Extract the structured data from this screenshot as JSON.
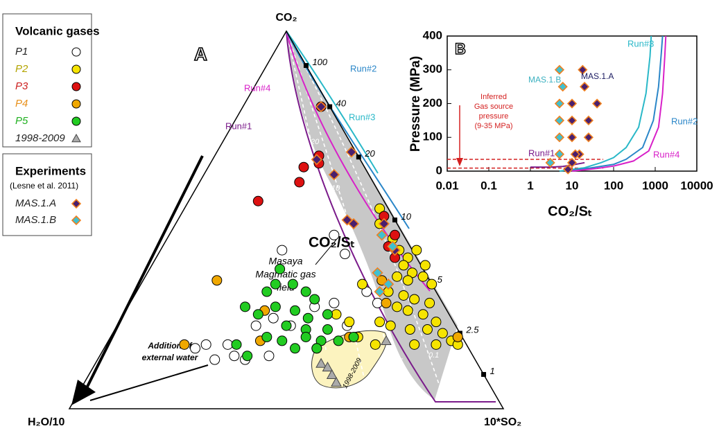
{
  "chart_data": [
    {
      "type": "ternary",
      "title": "A",
      "vertex_labels": {
        "top": "CO₂",
        "left": "H₂O/10",
        "right": "10*SO₂"
      },
      "ratio_label": "CO₂/Sₜ",
      "ratio_ticks": [
        100,
        40,
        20,
        10,
        5,
        2.5,
        1
      ],
      "legend_titles": {
        "gases": "Volcanic gases",
        "experiments": "Experiments",
        "experiments_note": "(Lesne et al. 2011)"
      },
      "series": [
        {
          "name": "P1",
          "legend_group": "gases",
          "marker": "circle",
          "color": "#ffffff",
          "label_color": "#222222",
          "co2": [
            42,
            17,
            16,
            17,
            14,
            13,
            13,
            14,
            22,
            24,
            27,
            28,
            31,
            28,
            46,
            41,
            22,
            22
          ],
          "so2": [
            28,
            23,
            21,
            28,
            31,
            27,
            34,
            39,
            40,
            35,
            43,
            47,
            53,
            57,
            38,
            43,
            53,
            32
          ]
        },
        {
          "name": "P2",
          "legend_group": "gases",
          "marker": "circle",
          "color": "#f6e400",
          "label_color": "#b3a400",
          "co2": [
            49,
            45,
            42,
            40,
            42,
            38,
            36,
            38,
            35,
            34,
            35,
            33,
            31,
            30,
            29,
            28,
            27,
            26,
            25,
            23,
            23,
            22,
            21,
            21,
            20,
            17,
            17,
            18,
            19,
            17,
            23,
            33,
            17,
            25,
            53,
            16
          ],
          "so2": [
            47,
            52,
            55,
            58,
            59,
            58,
            61,
            63,
            58,
            61,
            64,
            67,
            58,
            62,
            65,
            69,
            62,
            65,
            69,
            73,
            60,
            63,
            68,
            72,
            76,
            71,
            76,
            79,
            57,
            62,
            53,
            51,
            81,
            49,
            45,
            49
          ]
        },
        {
          "name": "P3",
          "legend_group": "gases",
          "marker": "circle",
          "color": "#dd1111",
          "label_color": "#cc2020",
          "co2": [
            80,
            67,
            65,
            64,
            60,
            55,
            51,
            46,
            43,
            40
          ],
          "so2": [
            18,
            24,
            25,
            22,
            23,
            16,
            47,
            52,
            52,
            55
          ]
        },
        {
          "name": "P4",
          "legend_group": "gases",
          "marker": "circle",
          "color": "#f0a800",
          "label_color": "#e8901a",
          "co2": [
            34,
            26,
            17,
            18,
            34,
            28,
            19,
            19
          ],
          "so2": [
            17,
            32,
            18,
            35,
            55,
            59,
            80,
            55
          ]
        },
        {
          "name": "P5",
          "legend_group": "gases",
          "marker": "circle",
          "color": "#22cc22",
          "label_color": "#20b020",
          "co2": [
            37,
            33,
            31,
            33,
            31,
            29,
            27,
            25,
            27,
            26,
            24,
            25,
            22,
            21,
            21,
            19,
            18,
            19,
            18,
            18,
            19,
            14,
            17,
            16,
            16
          ],
          "so2": [
            30,
            31,
            30,
            35,
            39,
            42,
            27,
            31,
            34,
            39,
            43,
            47,
            39,
            44,
            49,
            36,
            40,
            45,
            49,
            53,
            56,
            34,
            30,
            44,
            49
          ]
        },
        {
          "name": "1998-2009",
          "legend_group": "gases",
          "marker": "triangle",
          "color": "#aaaaaa",
          "label_color": "#222222",
          "co2": [
            12,
            11,
            9,
            7,
            18
          ],
          "so2": [
            52,
            54,
            56,
            58,
            64
          ]
        },
        {
          "name": "MAS.1.A",
          "legend_group": "experiments",
          "marker": "diamond",
          "color": "#4a1f6e",
          "stroke": "#f08020",
          "label_color": "#222222",
          "co2": [
            80,
            68,
            62,
            66,
            50,
            49,
            49,
            42
          ],
          "so2": [
            18,
            31,
            30,
            24,
            39,
            41,
            48,
            54
          ]
        },
        {
          "name": "MAS.1.B",
          "legend_group": "experiments",
          "marker": "diamond",
          "color": "#40c0d0",
          "stroke": "#f08020",
          "label_color": "#222222",
          "co2": [
            46,
            43,
            36,
            33,
            31
          ],
          "so2": [
            49,
            53,
            53,
            57,
            56
          ]
        }
      ],
      "annotations": {
        "run1": "Run#1",
        "run2": "Run#2",
        "run3": "Run#3",
        "run4": "Run#4",
        "gas_field": [
          "Masaya",
          "Magmatic gas",
          "field"
        ],
        "water": [
          "Addition of",
          "external water"
        ],
        "field_1998": "1998-2009",
        "iso": [
          20,
          10,
          5,
          0.1
        ]
      }
    },
    {
      "type": "scatter",
      "title": "B",
      "x_label": "CO₂/Sₜ",
      "y_label": "Pressure (MPa)",
      "log_x": true,
      "xlim": [
        0.01,
        10000
      ],
      "xticks": [
        0.01,
        0.1,
        1,
        10,
        100,
        1000,
        10000
      ],
      "ylim": [
        0,
        400
      ],
      "yticks": [
        0,
        100,
        200,
        300,
        400
      ],
      "hlines": [
        35,
        9
      ],
      "hline_color": "#d42020",
      "series": [
        {
          "name": "MAS.1.A",
          "type": "scatter",
          "color": "#4a1f6e",
          "stroke": "#f08020",
          "x": [
            18,
            20,
            10,
            40,
            10,
            25,
            10,
            25,
            15,
            12,
            10,
            8
          ],
          "values": [
            300,
            250,
            200,
            200,
            150,
            150,
            100,
            100,
            50,
            50,
            25,
            5
          ]
        },
        {
          "name": "MAS.1.B",
          "type": "scatter",
          "color": "#40c0d0",
          "stroke": "#f08020",
          "x": [
            5,
            6,
            5,
            5,
            5,
            5,
            3
          ],
          "values": [
            300,
            250,
            200,
            150,
            100,
            50,
            25
          ]
        },
        {
          "name": "Run#3",
          "type": "line",
          "color": "#29b8c8",
          "x": [
            5,
            20,
            50,
            100,
            200,
            400,
            600,
            750,
            800
          ],
          "values": [
            0,
            10,
            25,
            40,
            70,
            130,
            230,
            340,
            400
          ]
        },
        {
          "name": "Run#2",
          "type": "line",
          "color": "#2a86c8",
          "x": [
            8,
            30,
            100,
            200,
            500,
            900,
            1200,
            1400,
            1500
          ],
          "values": [
            0,
            10,
            20,
            35,
            70,
            150,
            250,
            350,
            400
          ]
        },
        {
          "name": "Run#4",
          "type": "line",
          "color": "#d820c8",
          "x": [
            10,
            40,
            100,
            300,
            700,
            1200,
            1500,
            1700,
            1800
          ],
          "values": [
            0,
            8,
            15,
            30,
            60,
            130,
            230,
            340,
            400
          ]
        },
        {
          "name": "Run#1",
          "type": "line",
          "color": "#7a1a8a",
          "x": [
            1,
            3,
            6,
            10,
            20
          ],
          "values": [
            12,
            12,
            14,
            18,
            25
          ]
        }
      ],
      "annotations": {
        "inferred": [
          "Inferred",
          "Gas source",
          "pressure",
          "(9-35 MPa)"
        ],
        "mas1a": "MAS.1.A",
        "mas1b": "MAS.1.B"
      }
    }
  ]
}
